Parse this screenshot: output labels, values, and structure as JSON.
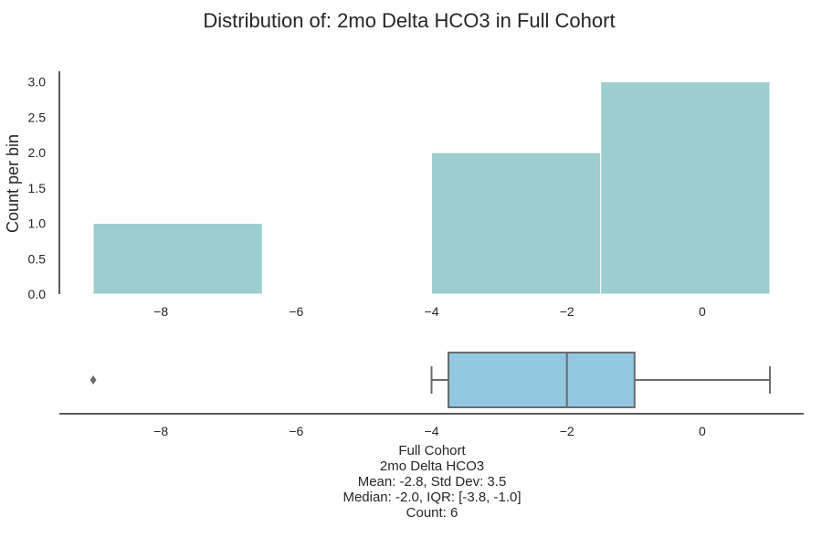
{
  "chart_data": [
    {
      "type": "histogram",
      "title": "Distribution of: 2mo Delta HCO3 in Full Cohort",
      "xlabel": "",
      "ylabel": "Count per bin",
      "xlim": [
        -9.5,
        1.5
      ],
      "ylim": [
        0,
        3.15
      ],
      "xticks": [
        -8,
        -6,
        -4,
        -2,
        0
      ],
      "yticks": [
        0.0,
        0.5,
        1.0,
        1.5,
        2.0,
        2.5,
        3.0
      ],
      "bins": [
        {
          "x0": -9.0,
          "x1": -6.5,
          "count": 1
        },
        {
          "x0": -6.5,
          "x1": -4.0,
          "count": 0
        },
        {
          "x0": -4.0,
          "x1": -1.5,
          "count": 2
        },
        {
          "x0": -1.5,
          "x1": 1.0,
          "count": 3
        }
      ],
      "bar_color": "#9ccdcf",
      "grid": false
    },
    {
      "type": "box",
      "xlim": [
        -9.5,
        1.5
      ],
      "xticks": [
        -8,
        -6,
        -4,
        -2,
        0
      ],
      "whisker_low": -4.0,
      "q1": -3.75,
      "median": -2.0,
      "q3": -1.0,
      "whisker_high": 1.0,
      "outliers": [
        -9.0
      ],
      "box_color": "#92c8e0",
      "line_color": "#6b6b6b"
    }
  ],
  "stats": {
    "line1": "Full Cohort",
    "line2": "2mo Delta HCO3",
    "line3": "Mean: -2.8, Std Dev: 3.5",
    "line4": "Median: -2.0, IQR: [-3.8, -1.0]",
    "line5": "Count: 6"
  },
  "colors": {
    "axis": "#262626"
  }
}
